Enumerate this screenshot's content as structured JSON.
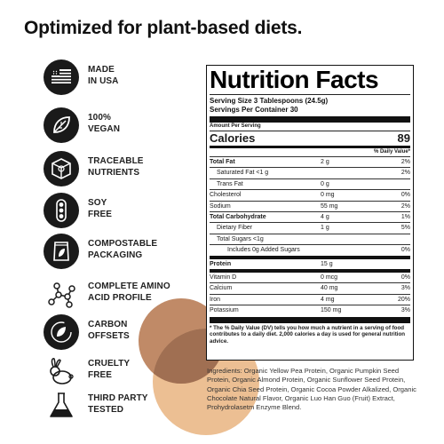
{
  "headline": "Optimized for plant-based diets.",
  "features": [
    {
      "icon": "usa-flag-icon",
      "label": "MADE\nIN USA"
    },
    {
      "icon": "vegan-leaf-icon",
      "label": "100%\nVEGAN"
    },
    {
      "icon": "traceable-box-icon",
      "label": "TRACEABLE\nNUTRIENTS"
    },
    {
      "icon": "soy-pod-icon",
      "label": "SOY\nFREE"
    },
    {
      "icon": "compostable-pouch-icon",
      "label": "COMPOSTABLE\nPACKAGING"
    },
    {
      "icon": "molecule-icon",
      "label": "COMPLETE AMINO\nACID PROFILE"
    },
    {
      "icon": "carbon-leaf-icon",
      "label": "CARBON\nOFFSETS"
    },
    {
      "icon": "rabbit-icon",
      "label": "CRUELTY\nFREE"
    },
    {
      "icon": "flask-icon",
      "label": "THIRD PARTY\nTESTED"
    }
  ],
  "nutrition": {
    "title": "Nutrition Facts",
    "serving_size": "Serving Size 3 Tablespoons (24.5g)",
    "servings_per_container": "Servings Per Container 30",
    "amount_per_serving": "Amount Per Serving",
    "calories_label": "Calories",
    "calories_value": "89",
    "daily_value_header": "% Daily Value*",
    "rows": [
      {
        "name": "Total Fat",
        "amount": "2 g",
        "dv": "2%",
        "style": "b"
      },
      {
        "name": "Saturated Fat <1 g",
        "amount": "",
        "dv": "2%",
        "style": "i1"
      },
      {
        "name": "Trans Fat",
        "amount": "0 g",
        "dv": "",
        "style": "i1"
      },
      {
        "name": "Cholesterol",
        "amount": "0 mg",
        "dv": "0%",
        "style": ""
      },
      {
        "name": "Sodium",
        "amount": "55 mg",
        "dv": "2%",
        "style": ""
      },
      {
        "name": "Total Carbohydrate",
        "amount": "4 g",
        "dv": "1%",
        "style": "b"
      },
      {
        "name": "Dietary Fiber",
        "amount": "1 g",
        "dv": "5%",
        "style": "i1"
      },
      {
        "name": "Total Sugars <1g",
        "amount": "",
        "dv": "",
        "style": "i1"
      },
      {
        "name": "Includes 0g Added Sugars",
        "amount": "",
        "dv": "0%",
        "style": "i3"
      },
      {
        "name": "Protein",
        "amount": "15 g",
        "dv": "",
        "style": "b"
      },
      {
        "name": "Vitamin D",
        "amount": "0 mcg",
        "dv": "0%",
        "style": ""
      },
      {
        "name": "Calcium",
        "amount": "40 mg",
        "dv": "3%",
        "style": ""
      },
      {
        "name": "Iron",
        "amount": "4 mg",
        "dv": "20%",
        "style": ""
      },
      {
        "name": "Potassium",
        "amount": "150 mg",
        "dv": "3%",
        "style": ""
      }
    ],
    "footnote": "* The % Daily Value (DV) tells you how much a nutrient in a serving of food contributes to a daily diet. 2,000 calories a day is used for general nutrition advice."
  },
  "ingredients": "Ingredients: Organic Yellow Pea Protein, Organic Pumpkin Seed Protein, Organic Almond Protein, Organic Sunflower Seed Protein, Organic Chia Seed Protein, Organic Cocoa Powder Alkalized, Organic Chocolate Natural Flavor, Organic Luo Han Guo (Fruit) Extract, Prohydrolasetm Enzyme Blend."
}
